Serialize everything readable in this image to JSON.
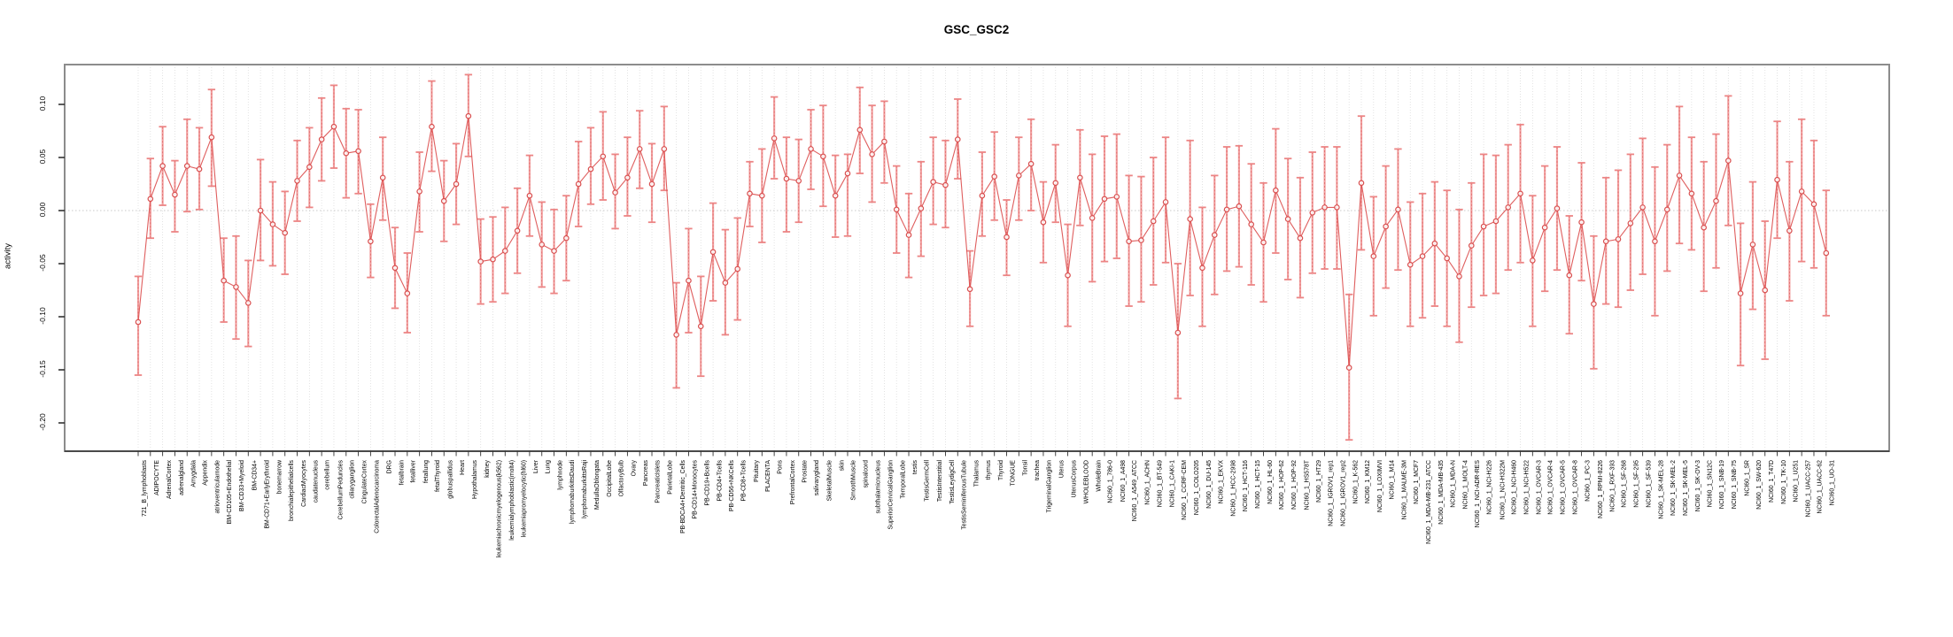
{
  "title": "GSC_GSC2",
  "y_axis": {
    "label": "activity",
    "tick_labels": [
      "0.10",
      "0.05",
      "0.00",
      "-0.05",
      "-0.10",
      "-0.15",
      "-0.20"
    ],
    "tick_values": [
      0.1,
      0.05,
      0.0,
      -0.05,
      -0.1,
      -0.15,
      -0.2
    ]
  },
  "colors": {
    "point": "#d94f4f",
    "line": "#dd5555",
    "error_bar": "#ef8a8a",
    "error_bar_cap": "#ec8585",
    "grid": "#dcdcdc",
    "zero_line": "#c8c8c8",
    "frame": "#8c8c8c",
    "axis": "#333333"
  },
  "chart_data": {
    "type": "line",
    "subtype": "points-with-error-bars",
    "title": "GSC_GSC2",
    "xlabel": "",
    "ylabel": "activity",
    "ylim": [
      -0.223,
      0.141
    ],
    "yticks": [
      0.1,
      0.05,
      0.0,
      -0.05,
      -0.1,
      -0.15,
      -0.2
    ],
    "grid": "vertical dotted line per category; horizontal dotted line at y=0",
    "legend_position": "none",
    "error_bars": true,
    "categories": [
      "721_B_lymphoblasts",
      "ADIPOCYTE",
      "AdrenalCortex",
      "adrenalgland",
      "Amygdala",
      "Appendix",
      "atrioventricularnode",
      "BM-CD105+Endothelial",
      "BM-CD33+Myeloid",
      "BM-CD34+",
      "BM-CD71+EarlyErythroid",
      "bonemarrow",
      "bronchialepithelialcells",
      "CardiacMyocytes",
      "caudatenucleus",
      "cerebellum",
      "CerebellumPeduncles",
      "ciliaryganglion",
      "CingulateCortex",
      "ColorectalAdenocarcinoma",
      "DRG",
      "fetalbrain",
      "fetalliver",
      "fetallung",
      "fetalThyroid",
      "globuspallidus",
      "Heart",
      "Hypothalamus",
      "kidney",
      "leukemiachronicmyelogenous(k562)",
      "leukemialymphoblastic(molt4)",
      "leukemiapromyelocytic(hl60)",
      "Liver",
      "Lung",
      "lymphnode",
      "lymphomaburkittsDaudi",
      "lymphomaburkittsRaji",
      "MedullaOblongata",
      "OccipitalLobe",
      "OlfactoryBulb",
      "Ovary",
      "Pancreas",
      "PancreaticIslets",
      "ParietalLobe",
      "PB-BDCA4+Dentritic_Cells",
      "PB-CD14+Monocytes",
      "PB-CD19+Bcells",
      "PB-CD4+Tcells",
      "PB-CD56+NKCells",
      "PB-CD8+Tcells",
      "Pituitary",
      "PLACENTA",
      "Pons",
      "PrefrontalCortex",
      "Prostate",
      "salivarygland",
      "SkeletalMuscle",
      "skin",
      "SmoothMuscle",
      "spinalcord",
      "subthalamicnucleus",
      "SuperiorCervicalGanglion",
      "TemporalLobe",
      "testis",
      "TestisGermCell",
      "TestisInterstitial",
      "TestisLeydigCell",
      "TestisSeminiferousTubule",
      "Thalamus",
      "thymus",
      "Thyroid",
      "TONGUE",
      "Tonsil",
      "trachea",
      "TrigeminalGanglion",
      "Uterus",
      "UterusCorpus",
      "WHOLEBLOOD",
      "WholeBrain",
      "NCI60_1_786-0",
      "NCI60_1_A498",
      "NCI60_1_A549_ATCC",
      "NCI60_1_ACHN",
      "NCI60_1_BT-549",
      "NCI60_1_CAKI-1",
      "NCI60_1_CCRF-CEM",
      "NCI60_1_COLO205",
      "NCI60_1_DU-145",
      "NCI60_1_EKVX",
      "NCI60_1_HCC-2998",
      "NCI60_1_HCT-116",
      "NCI60_1_HCT-15",
      "NCI60_1_HL-60",
      "NCI60_1_HOP-62",
      "NCI60_1_HOP-92",
      "NCI60_1_HS578T",
      "NCI60_1_HT29",
      "NCI60_1_IGROV1_rep1",
      "NCI60_1_IGROV1_rep2",
      "NCI60_1_K-562",
      "NCI60_1_KM12",
      "NCI60_1_LOXIMVI",
      "NCI60_1_M14",
      "NCI60_1_MALME-3M",
      "NCI60_1_MCF7",
      "NCI60_1_MDA-MB-231_ATCC",
      "NCI60_1_MDA-MB-435",
      "NCI60_1_MDA-N",
      "NCI60_1_MOLT-4",
      "NCI60_1_NCI-ADR-RES",
      "NCI60_1_NCI-H226",
      "NCI60_1_NCI-H322M",
      "NCI60_1_NCI-H460",
      "NCI60_1_NCI-H522",
      "NCI60_1_OVCAR-3",
      "NCI60_1_OVCAR-4",
      "NCI60_1_OVCAR-5",
      "NCI60_1_OVCAR-8",
      "NCI60_1_PC-3",
      "NCI60_1_RPMI-8226",
      "NCI60_1_RXF-393",
      "NCI60_1_SF-268",
      "NCI60_1_SF-295",
      "NCI60_1_SF-539",
      "NCI60_1_SK-MEL-28",
      "NCI60_1_SK-MEL-2",
      "NCI60_1_SK-MEL-5",
      "NCI60_1_SK-OV-3",
      "NCI60_1_SN12C",
      "NCI60_1_SNB-19",
      "NCI60_1_SNB-75",
      "NCI60_1_SR",
      "NCI60_1_SW-620",
      "NCI60_1_T47D",
      "NCI60_1_TK-10",
      "NCI60_1_U251",
      "NCI60_1_UACC-257",
      "NCI60_1_UACC-62",
      "NCI60_1_UO-31"
    ],
    "series": [
      {
        "name": "activity",
        "values": [
          -0.105,
          0.011,
          0.042,
          0.015,
          0.042,
          0.039,
          0.069,
          -0.066,
          -0.072,
          -0.087,
          0.0,
          -0.013,
          -0.021,
          0.028,
          0.041,
          0.067,
          0.079,
          0.054,
          0.056,
          -0.029,
          0.031,
          -0.054,
          -0.078,
          0.018,
          0.079,
          0.009,
          0.025,
          0.089,
          -0.048,
          -0.046,
          -0.038,
          -0.019,
          0.014,
          -0.032,
          -0.038,
          -0.026,
          0.025,
          0.039,
          0.051,
          0.017,
          0.031,
          0.058,
          0.025,
          0.058,
          -0.117,
          -0.066,
          -0.109,
          -0.039,
          -0.068,
          -0.055,
          0.016,
          0.014,
          0.068,
          0.03,
          0.028,
          0.058,
          0.051,
          0.014,
          0.035,
          0.076,
          0.053,
          0.065,
          0.001,
          -0.023,
          0.002,
          0.027,
          0.024,
          0.067,
          -0.074,
          0.014,
          0.032,
          -0.025,
          0.033,
          0.044,
          -0.011,
          0.026,
          -0.061,
          0.031,
          -0.007,
          0.011,
          0.013,
          -0.029,
          -0.028,
          -0.01,
          0.008,
          -0.115,
          -0.008,
          -0.054,
          -0.023,
          0.001,
          0.004,
          -0.013,
          -0.03,
          0.019,
          -0.008,
          -0.026,
          -0.002,
          0.003,
          0.003,
          -0.148,
          0.026,
          -0.043,
          -0.015,
          0.001,
          -0.051,
          -0.043,
          -0.031,
          -0.045,
          -0.062,
          -0.033,
          -0.015,
          -0.01,
          0.003,
          0.016,
          -0.047,
          -0.016,
          0.002,
          -0.061,
          -0.011,
          -0.088,
          -0.029,
          -0.027,
          -0.012,
          0.003,
          -0.029,
          0.001,
          0.033,
          0.016,
          -0.016,
          0.009,
          0.047,
          -0.078,
          -0.032,
          -0.075,
          0.029,
          -0.019,
          0.018,
          0.006,
          -0.04
        ]
      },
      {
        "name": "error_low",
        "values": [
          -0.155,
          -0.026,
          0.005,
          -0.02,
          -0.001,
          0.001,
          0.023,
          -0.105,
          -0.121,
          -0.128,
          -0.047,
          -0.052,
          -0.06,
          -0.01,
          0.003,
          0.028,
          0.04,
          0.012,
          0.016,
          -0.063,
          -0.009,
          -0.092,
          -0.115,
          -0.02,
          0.037,
          -0.029,
          -0.013,
          0.051,
          -0.088,
          -0.086,
          -0.078,
          -0.059,
          -0.024,
          -0.072,
          -0.078,
          -0.066,
          -0.015,
          0.006,
          0.01,
          -0.017,
          -0.005,
          0.021,
          -0.011,
          0.019,
          -0.167,
          -0.115,
          -0.156,
          -0.085,
          -0.117,
          -0.103,
          -0.015,
          -0.03,
          0.03,
          -0.02,
          -0.011,
          0.02,
          0.004,
          -0.025,
          -0.024,
          0.035,
          0.008,
          0.026,
          -0.04,
          -0.063,
          -0.043,
          -0.013,
          -0.016,
          0.03,
          -0.109,
          -0.024,
          -0.009,
          -0.061,
          -0.009,
          0.0,
          -0.049,
          -0.011,
          -0.109,
          -0.014,
          -0.067,
          -0.048,
          -0.045,
          -0.09,
          -0.086,
          -0.07,
          -0.049,
          -0.177,
          -0.08,
          -0.109,
          -0.079,
          -0.057,
          -0.053,
          -0.07,
          -0.086,
          -0.04,
          -0.065,
          -0.082,
          -0.059,
          -0.055,
          -0.055,
          -0.216,
          -0.037,
          -0.099,
          -0.073,
          -0.056,
          -0.109,
          -0.101,
          -0.09,
          -0.109,
          -0.124,
          -0.091,
          -0.08,
          -0.078,
          -0.056,
          -0.049,
          -0.109,
          -0.076,
          -0.056,
          -0.116,
          -0.066,
          -0.149,
          -0.088,
          -0.091,
          -0.075,
          -0.06,
          -0.099,
          -0.057,
          -0.031,
          -0.037,
          -0.076,
          -0.054,
          -0.014,
          -0.146,
          -0.093,
          -0.14,
          -0.026,
          -0.085,
          -0.048,
          -0.054,
          -0.099
        ]
      },
      {
        "name": "error_high",
        "values": [
          -0.062,
          0.049,
          0.079,
          0.047,
          0.086,
          0.078,
          0.114,
          -0.026,
          -0.024,
          -0.047,
          0.048,
          0.027,
          0.018,
          0.066,
          0.078,
          0.106,
          0.118,
          0.096,
          0.095,
          0.006,
          0.069,
          -0.016,
          -0.04,
          0.055,
          0.122,
          0.047,
          0.063,
          0.128,
          -0.008,
          -0.006,
          0.003,
          0.021,
          0.052,
          0.008,
          0.001,
          0.014,
          0.065,
          0.078,
          0.093,
          0.053,
          0.069,
          0.094,
          0.063,
          0.098,
          -0.068,
          -0.017,
          -0.062,
          0.007,
          -0.018,
          -0.007,
          0.046,
          0.058,
          0.107,
          0.069,
          0.067,
          0.095,
          0.099,
          0.052,
          0.053,
          0.116,
          0.099,
          0.103,
          0.042,
          0.016,
          0.046,
          0.069,
          0.066,
          0.105,
          -0.038,
          0.055,
          0.074,
          0.01,
          0.069,
          0.086,
          0.027,
          0.062,
          -0.013,
          0.076,
          0.053,
          0.07,
          0.072,
          0.033,
          0.032,
          0.05,
          0.069,
          -0.05,
          0.066,
          0.003,
          0.033,
          0.06,
          0.061,
          0.044,
          0.026,
          0.077,
          0.049,
          0.031,
          0.055,
          0.06,
          0.06,
          -0.079,
          0.089,
          0.013,
          0.042,
          0.058,
          0.008,
          0.016,
          0.027,
          0.019,
          0.001,
          0.026,
          0.053,
          0.052,
          0.062,
          0.081,
          0.014,
          0.042,
          0.06,
          -0.005,
          0.045,
          -0.024,
          0.031,
          0.038,
          0.053,
          0.068,
          0.041,
          0.062,
          0.098,
          0.069,
          0.046,
          0.072,
          0.108,
          -0.012,
          0.027,
          -0.01,
          0.084,
          0.046,
          0.086,
          0.066,
          0.019
        ]
      }
    ]
  }
}
